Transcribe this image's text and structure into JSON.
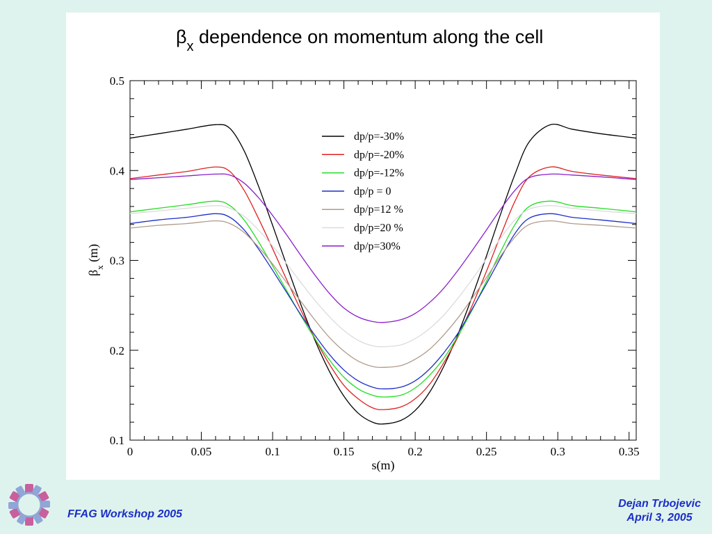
{
  "footer": {
    "left": "FFAG Workshop 2005",
    "author": "Dejan Trbojevic",
    "date": "April 3, 2005"
  },
  "logo": {
    "icon": "ffag-ring-logo-icon",
    "colors": [
      "#c8609e",
      "#8fa6d6"
    ]
  },
  "chart_data": {
    "type": "line",
    "title_main": "β",
    "title_sub": "x",
    "title_rest": " dependence on momentum along the cell",
    "xlabel": "s(m)",
    "ylabel_main": "β",
    "ylabel_sub": "x",
    "ylabel_rest": " (m)",
    "xlim": [
      0,
      0.355
    ],
    "ylim": [
      0.1,
      0.5
    ],
    "xticks": [
      "0",
      "0.05",
      "0.1",
      "0.15",
      "0.2",
      "0.25",
      "0.3",
      "0.35"
    ],
    "yticks": [
      "0.1",
      "0.2",
      "0.3",
      "0.4",
      "0.5"
    ],
    "grid": false,
    "legend_position": "top-center",
    "x": [
      0,
      0.02,
      0.04,
      0.06,
      0.07,
      0.08,
      0.09,
      0.1,
      0.11,
      0.12,
      0.13,
      0.14,
      0.15,
      0.16,
      0.17,
      0.178,
      0.19,
      0.2,
      0.21,
      0.22,
      0.23,
      0.24,
      0.25,
      0.26,
      0.27,
      0.28,
      0.295,
      0.31,
      0.33,
      0.355
    ],
    "series": [
      {
        "name": "dp/p=-30%",
        "color": "#000000",
        "values": [
          0.436,
          0.441,
          0.446,
          0.451,
          0.447,
          0.422,
          0.383,
          0.339,
          0.294,
          0.25,
          0.21,
          0.176,
          0.149,
          0.13,
          0.12,
          0.118,
          0.122,
          0.133,
          0.153,
          0.182,
          0.218,
          0.26,
          0.305,
          0.352,
          0.396,
          0.432,
          0.451,
          0.446,
          0.441,
          0.436
        ]
      },
      {
        "name": "dp/p=-20%",
        "color": "#e02020",
        "values": [
          0.391,
          0.395,
          0.399,
          0.404,
          0.399,
          0.378,
          0.347,
          0.313,
          0.278,
          0.244,
          0.212,
          0.184,
          0.161,
          0.146,
          0.136,
          0.134,
          0.137,
          0.146,
          0.162,
          0.186,
          0.215,
          0.25,
          0.288,
          0.328,
          0.366,
          0.393,
          0.404,
          0.399,
          0.395,
          0.391
        ]
      },
      {
        "name": "dp/p=-12%",
        "color": "#22dd22",
        "values": [
          0.354,
          0.358,
          0.362,
          0.366,
          0.361,
          0.345,
          0.321,
          0.294,
          0.266,
          0.238,
          0.212,
          0.189,
          0.17,
          0.157,
          0.15,
          0.148,
          0.15,
          0.158,
          0.172,
          0.191,
          0.216,
          0.245,
          0.277,
          0.31,
          0.34,
          0.36,
          0.366,
          0.361,
          0.358,
          0.354
        ]
      },
      {
        "name": "dp/p = 0",
        "color": "#1e2ec8",
        "values": [
          0.341,
          0.345,
          0.348,
          0.352,
          0.348,
          0.334,
          0.313,
          0.289,
          0.264,
          0.239,
          0.216,
          0.195,
          0.178,
          0.166,
          0.159,
          0.157,
          0.159,
          0.166,
          0.179,
          0.197,
          0.219,
          0.246,
          0.274,
          0.303,
          0.33,
          0.347,
          0.352,
          0.348,
          0.345,
          0.341
        ]
      },
      {
        "name": "dp/p=12 %",
        "color": "#b09a8a",
        "values": [
          0.336,
          0.339,
          0.341,
          0.344,
          0.341,
          0.331,
          0.315,
          0.296,
          0.275,
          0.254,
          0.233,
          0.214,
          0.199,
          0.188,
          0.182,
          0.181,
          0.183,
          0.19,
          0.201,
          0.217,
          0.236,
          0.258,
          0.281,
          0.305,
          0.326,
          0.34,
          0.344,
          0.341,
          0.339,
          0.336
        ]
      },
      {
        "name": "dp/p=20 %",
        "color": "#dcdcdc",
        "values": [
          0.352,
          0.355,
          0.358,
          0.361,
          0.358,
          0.349,
          0.334,
          0.316,
          0.296,
          0.275,
          0.255,
          0.237,
          0.222,
          0.211,
          0.205,
          0.204,
          0.206,
          0.213,
          0.224,
          0.239,
          0.258,
          0.279,
          0.302,
          0.325,
          0.345,
          0.357,
          0.361,
          0.358,
          0.355,
          0.352
        ]
      },
      {
        "name": "dp/p=30%",
        "color": "#8a1ecc",
        "values": [
          0.39,
          0.392,
          0.394,
          0.396,
          0.395,
          0.386,
          0.37,
          0.35,
          0.328,
          0.305,
          0.283,
          0.263,
          0.247,
          0.237,
          0.232,
          0.231,
          0.234,
          0.241,
          0.253,
          0.269,
          0.289,
          0.311,
          0.334,
          0.357,
          0.378,
          0.392,
          0.396,
          0.395,
          0.393,
          0.39
        ]
      }
    ]
  }
}
